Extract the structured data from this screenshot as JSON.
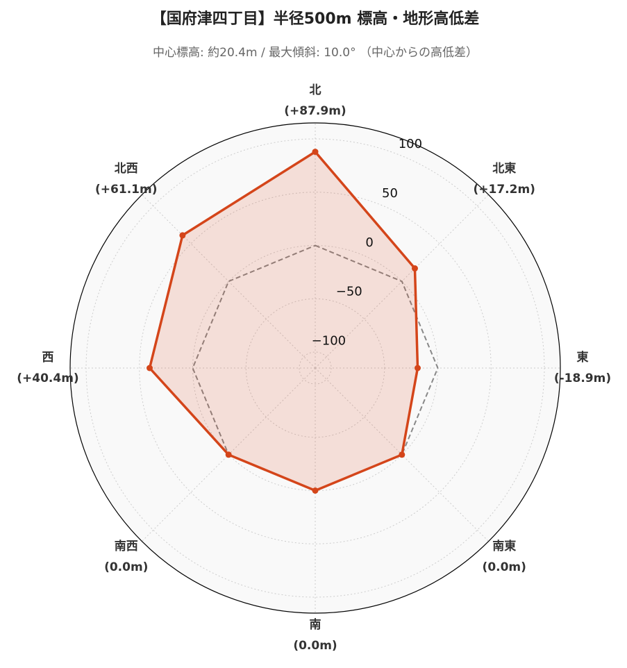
{
  "chart_data": {
    "type": "radar",
    "title": "【国府津四丁目】半径500m 標高・地形高低差",
    "subtitle": "中心標高: 約20.4m / 最大傾斜: 10.0° （中心からの高低差）",
    "categories": [
      "北",
      "北東",
      "東",
      "南東",
      "南",
      "南西",
      "西",
      "北西"
    ],
    "values": [
      87.9,
      17.2,
      -18.9,
      0.0,
      0.0,
      0.0,
      40.4,
      61.1
    ],
    "value_labels": [
      "(+87.9m)",
      "(+17.2m)",
      "(-18.9m)",
      "(0.0m)",
      "(0.0m)",
      "(0.0m)",
      "(+40.4m)",
      "(+61.1m)"
    ],
    "color": "#d4451a",
    "reference_line": 0,
    "ylim": [
      -115,
      115
    ],
    "yticks": [
      {
        "value": -100,
        "label": "−100"
      },
      {
        "value": -50,
        "label": "−50"
      },
      0,
      50,
      100
    ],
    "grid": true
  }
}
